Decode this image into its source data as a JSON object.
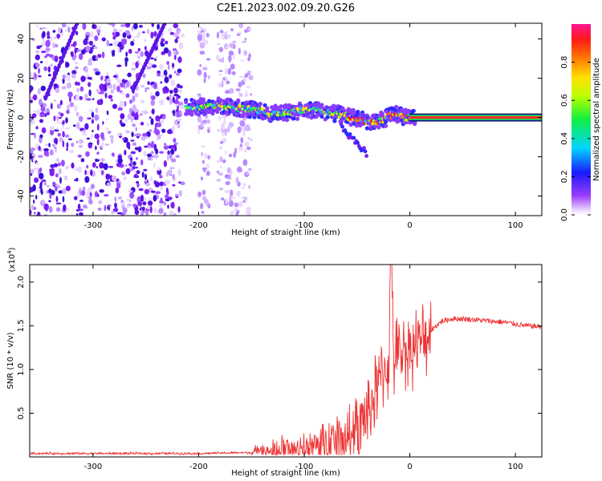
{
  "title": "C2E1.2023.002.09.20.G26",
  "colors": {
    "axis": "#000000",
    "snr_line": "#ee3333",
    "spectrogram_dots": "#6a1ee0",
    "ridge_core": "#ff2a2a"
  },
  "chart_data": [
    {
      "type": "heatmap",
      "name": "spectrogram",
      "xlabel": "Height of straight line (km)",
      "ylabel": "Frequency (Hz)",
      "xlim": [
        -360,
        125
      ],
      "ylim": [
        -50,
        48
      ],
      "xticks": [
        -300,
        -200,
        -100,
        0,
        100
      ],
      "xtick_labels": [
        "-300",
        "-200",
        "-100",
        "0",
        "100"
      ],
      "yticks": [
        -40,
        -20,
        0,
        20,
        40
      ],
      "ytick_labels": [
        "-40",
        "-20",
        "0",
        "20",
        "40"
      ],
      "colorbar": {
        "label": "Normalized spectral amplitude",
        "range": [
          0,
          1
        ],
        "ticks": [
          0.0,
          0.2,
          0.4,
          0.6,
          0.8
        ],
        "tick_labels": [
          "0.0",
          "0.2",
          "0.4",
          "0.6",
          "0.8"
        ],
        "colormap": "rainbow (white-violet-blue-cyan-green-yellow-red-magenta)"
      },
      "ridge": {
        "x": [
          -210,
          -180,
          -150,
          -130,
          -110,
          -90,
          -70,
          -55,
          -45,
          -35,
          -25,
          -15,
          -5,
          0,
          125
        ],
        "y": [
          5,
          6,
          4,
          2,
          3,
          4,
          2,
          0,
          -1,
          -3,
          -1,
          2,
          0,
          0,
          0
        ]
      },
      "streaks": [
        {
          "x": [
            -345,
            -315
          ],
          "y": [
            10,
            48
          ]
        },
        {
          "x": [
            -262,
            -232
          ],
          "y": [
            14,
            48
          ]
        }
      ]
    },
    {
      "type": "line",
      "name": "snr",
      "xlabel": "Height of straight line (km)",
      "ylabel": "SNR (10 * v/v)",
      "scale_label": "(x10^4)",
      "scale_base": "(x10",
      "scale_exp": "4",
      "xlim": [
        -360,
        125
      ],
      "ylim": [
        0,
        2.2
      ],
      "xticks": [
        -300,
        -200,
        -100,
        0,
        100
      ],
      "xtick_labels": [
        "-300",
        "-200",
        "-100",
        "0",
        "100"
      ],
      "yticks": [
        0.5,
        1.0,
        1.5,
        2.0
      ],
      "ytick_labels": [
        "0.5",
        "1.0",
        "1.5",
        "2.0"
      ],
      "series": [
        {
          "name": "SNR",
          "x": [
            -360,
            -250,
            -200,
            -150,
            -120,
            -100,
            -80,
            -60,
            -50,
            -40,
            -30,
            -25,
            -20,
            -18,
            -15,
            -10,
            0,
            10,
            20,
            30,
            40,
            50,
            60,
            70,
            80,
            90,
            100,
            110,
            125
          ],
          "y": [
            0.04,
            0.04,
            0.04,
            0.05,
            0.07,
            0.1,
            0.14,
            0.22,
            0.32,
            0.5,
            0.8,
            1.0,
            1.05,
            2.2,
            1.1,
            1.2,
            1.25,
            1.3,
            1.45,
            1.55,
            1.58,
            1.58,
            1.57,
            1.56,
            1.55,
            1.54,
            1.52,
            1.5,
            1.49
          ]
        }
      ]
    }
  ]
}
